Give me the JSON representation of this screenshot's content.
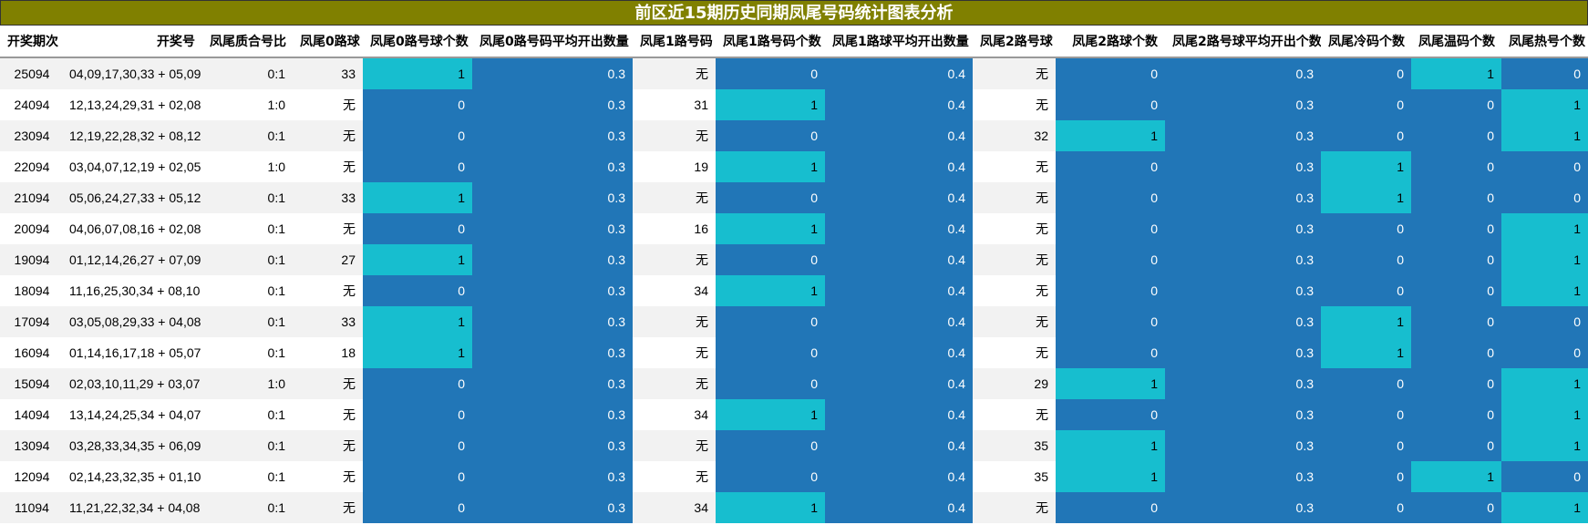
{
  "title": "前区近15期历史同期凤尾号码统计图表分析",
  "colors": {
    "title_bg": "#808000",
    "blue": "#2176b7",
    "cyan": "#17becf"
  },
  "headers": [
    "开奖期次",
    "开奖号",
    "凤尾质合号比",
    "凤尾0路球",
    "凤尾0路号球个数",
    "凤尾0路号码平均开出数量",
    "凤尾1路号码",
    "凤尾1路号码个数",
    "凤尾1路球平均开出数量",
    "凤尾2路号球",
    "凤尾2路球个数",
    "凤尾2路号球平均开出个数",
    "凤尾冷码个数",
    "凤尾温码个数",
    "凤尾热号个数"
  ],
  "rows": [
    [
      "25094",
      "04,09,17,30,33 + 05,09",
      "0:1",
      "33",
      "1",
      "0.3",
      "无",
      "0",
      "0.4",
      "无",
      "0",
      "0.3",
      "0",
      "1",
      "0"
    ],
    [
      "24094",
      "12,13,24,29,31 + 02,08",
      "1:0",
      "无",
      "0",
      "0.3",
      "31",
      "1",
      "0.4",
      "无",
      "0",
      "0.3",
      "0",
      "0",
      "1"
    ],
    [
      "23094",
      "12,19,22,28,32 + 08,12",
      "0:1",
      "无",
      "0",
      "0.3",
      "无",
      "0",
      "0.4",
      "32",
      "1",
      "0.3",
      "0",
      "0",
      "1"
    ],
    [
      "22094",
      "03,04,07,12,19 + 02,05",
      "1:0",
      "无",
      "0",
      "0.3",
      "19",
      "1",
      "0.4",
      "无",
      "0",
      "0.3",
      "1",
      "0",
      "0"
    ],
    [
      "21094",
      "05,06,24,27,33 + 05,12",
      "0:1",
      "33",
      "1",
      "0.3",
      "无",
      "0",
      "0.4",
      "无",
      "0",
      "0.3",
      "1",
      "0",
      "0"
    ],
    [
      "20094",
      "04,06,07,08,16 + 02,08",
      "0:1",
      "无",
      "0",
      "0.3",
      "16",
      "1",
      "0.4",
      "无",
      "0",
      "0.3",
      "0",
      "0",
      "1"
    ],
    [
      "19094",
      "01,12,14,26,27 + 07,09",
      "0:1",
      "27",
      "1",
      "0.3",
      "无",
      "0",
      "0.4",
      "无",
      "0",
      "0.3",
      "0",
      "0",
      "1"
    ],
    [
      "18094",
      "11,16,25,30,34 + 08,10",
      "0:1",
      "无",
      "0",
      "0.3",
      "34",
      "1",
      "0.4",
      "无",
      "0",
      "0.3",
      "0",
      "0",
      "1"
    ],
    [
      "17094",
      "03,05,08,29,33 + 04,08",
      "0:1",
      "33",
      "1",
      "0.3",
      "无",
      "0",
      "0.4",
      "无",
      "0",
      "0.3",
      "1",
      "0",
      "0"
    ],
    [
      "16094",
      "01,14,16,17,18 + 05,07",
      "0:1",
      "18",
      "1",
      "0.3",
      "无",
      "0",
      "0.4",
      "无",
      "0",
      "0.3",
      "1",
      "0",
      "0"
    ],
    [
      "15094",
      "02,03,10,11,29 + 03,07",
      "1:0",
      "无",
      "0",
      "0.3",
      "无",
      "0",
      "0.4",
      "29",
      "1",
      "0.3",
      "0",
      "0",
      "1"
    ],
    [
      "14094",
      "13,14,24,25,34 + 04,07",
      "0:1",
      "无",
      "0",
      "0.3",
      "34",
      "1",
      "0.4",
      "无",
      "0",
      "0.3",
      "0",
      "0",
      "1"
    ],
    [
      "13094",
      "03,28,33,34,35 + 06,09",
      "0:1",
      "无",
      "0",
      "0.3",
      "无",
      "0",
      "0.4",
      "35",
      "1",
      "0.3",
      "0",
      "0",
      "1"
    ],
    [
      "12094",
      "02,14,23,32,35 + 01,10",
      "0:1",
      "无",
      "0",
      "0.3",
      "无",
      "0",
      "0.4",
      "35",
      "1",
      "0.3",
      "0",
      "1",
      "0"
    ],
    [
      "11094",
      "11,21,22,32,34 + 04,08",
      "0:1",
      "无",
      "0",
      "0.3",
      "34",
      "1",
      "0.4",
      "无",
      "0",
      "0.3",
      "0",
      "0",
      "1"
    ]
  ]
}
